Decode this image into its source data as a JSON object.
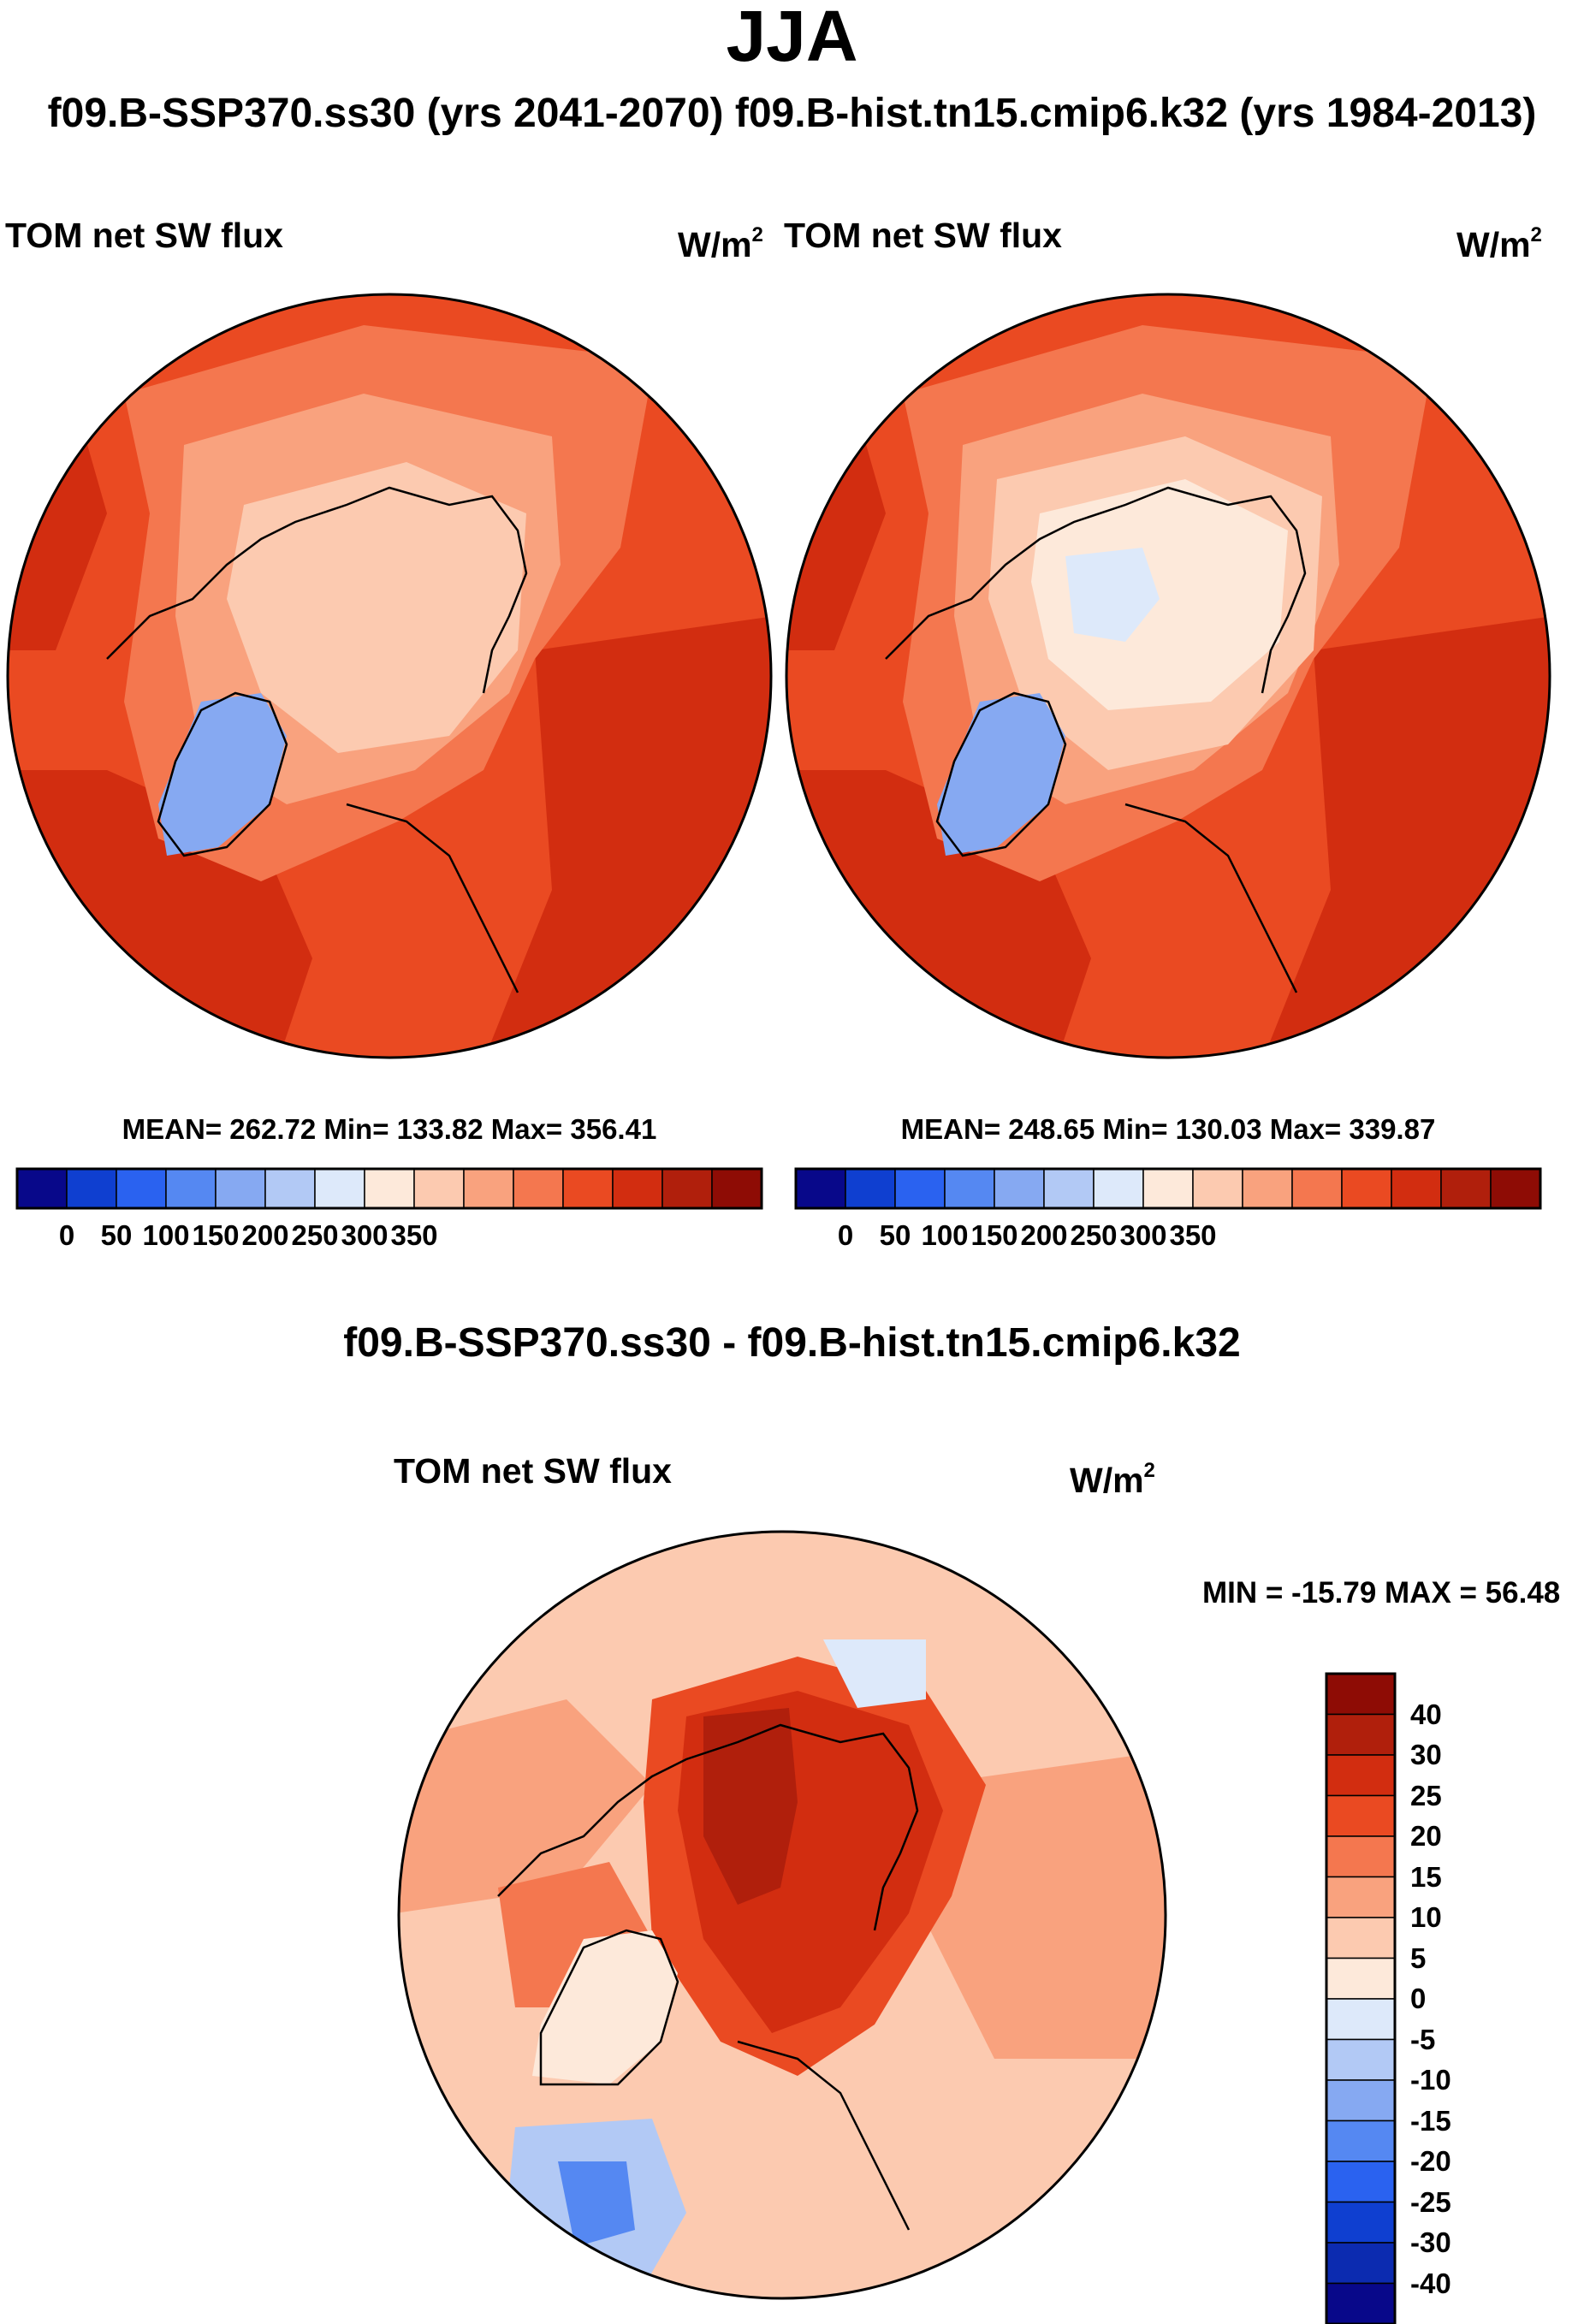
{
  "figure": {
    "title": "JJA",
    "subtitle": "f09.B-SSP370.ss30 (yrs 2041-2070)  f09.B-hist.tn15.cmip6.k32 (yrs 1984-2013)",
    "diff_title": "f09.B-SSP370.ss30 - f09.B-hist.tn15.cmip6.k32"
  },
  "panels": [
    {
      "variable": "TOM net SW flux",
      "units_base": "W/m",
      "units_exp": "2",
      "stats": "MEAN= 262.72  Min= 133.82  Max= 356.41",
      "mean": 262.72,
      "min": 133.82,
      "max": 356.41
    },
    {
      "variable": "TOM net SW flux",
      "units_base": "W/m",
      "units_exp": "2",
      "stats": "MEAN= 248.65  Min= 130.03  Max= 339.87",
      "mean": 248.65,
      "min": 130.03,
      "max": 339.87
    },
    {
      "variable": "TOM net SW flux",
      "units_base": "W/m",
      "units_exp": "2",
      "minmax": "MIN = -15.79 MAX =  56.48",
      "min": -15.79,
      "max": 56.48
    }
  ],
  "colorbar_abs": {
    "ticks": [
      "0",
      "50",
      "100",
      "150",
      "200",
      "250",
      "300",
      "350"
    ],
    "colors": [
      "#08088a",
      "#0f3fd0",
      "#2a62f0",
      "#5588f2",
      "#86a9f2",
      "#b2c9f5",
      "#dde9fa",
      "#fde9da",
      "#fccab0",
      "#f9a27e",
      "#f4774f",
      "#ea4a22",
      "#d22d10",
      "#b01f0c",
      "#8e0c05"
    ]
  },
  "colorbar_diff": {
    "ticks": [
      "40",
      "30",
      "25",
      "20",
      "15",
      "10",
      "5",
      "0",
      "-5",
      "-10",
      "-15",
      "-20",
      "-25",
      "-30",
      "-40"
    ],
    "colors": [
      "#8e0c05",
      "#b01f0c",
      "#d22d10",
      "#ea4a22",
      "#f4774f",
      "#f9a27e",
      "#fccab0",
      "#fde9da",
      "#dde9fa",
      "#b2c9f5",
      "#86a9f2",
      "#5588f2",
      "#2a62f0",
      "#0f3fd0",
      "#0c2bb0",
      "#08088a"
    ]
  }
}
